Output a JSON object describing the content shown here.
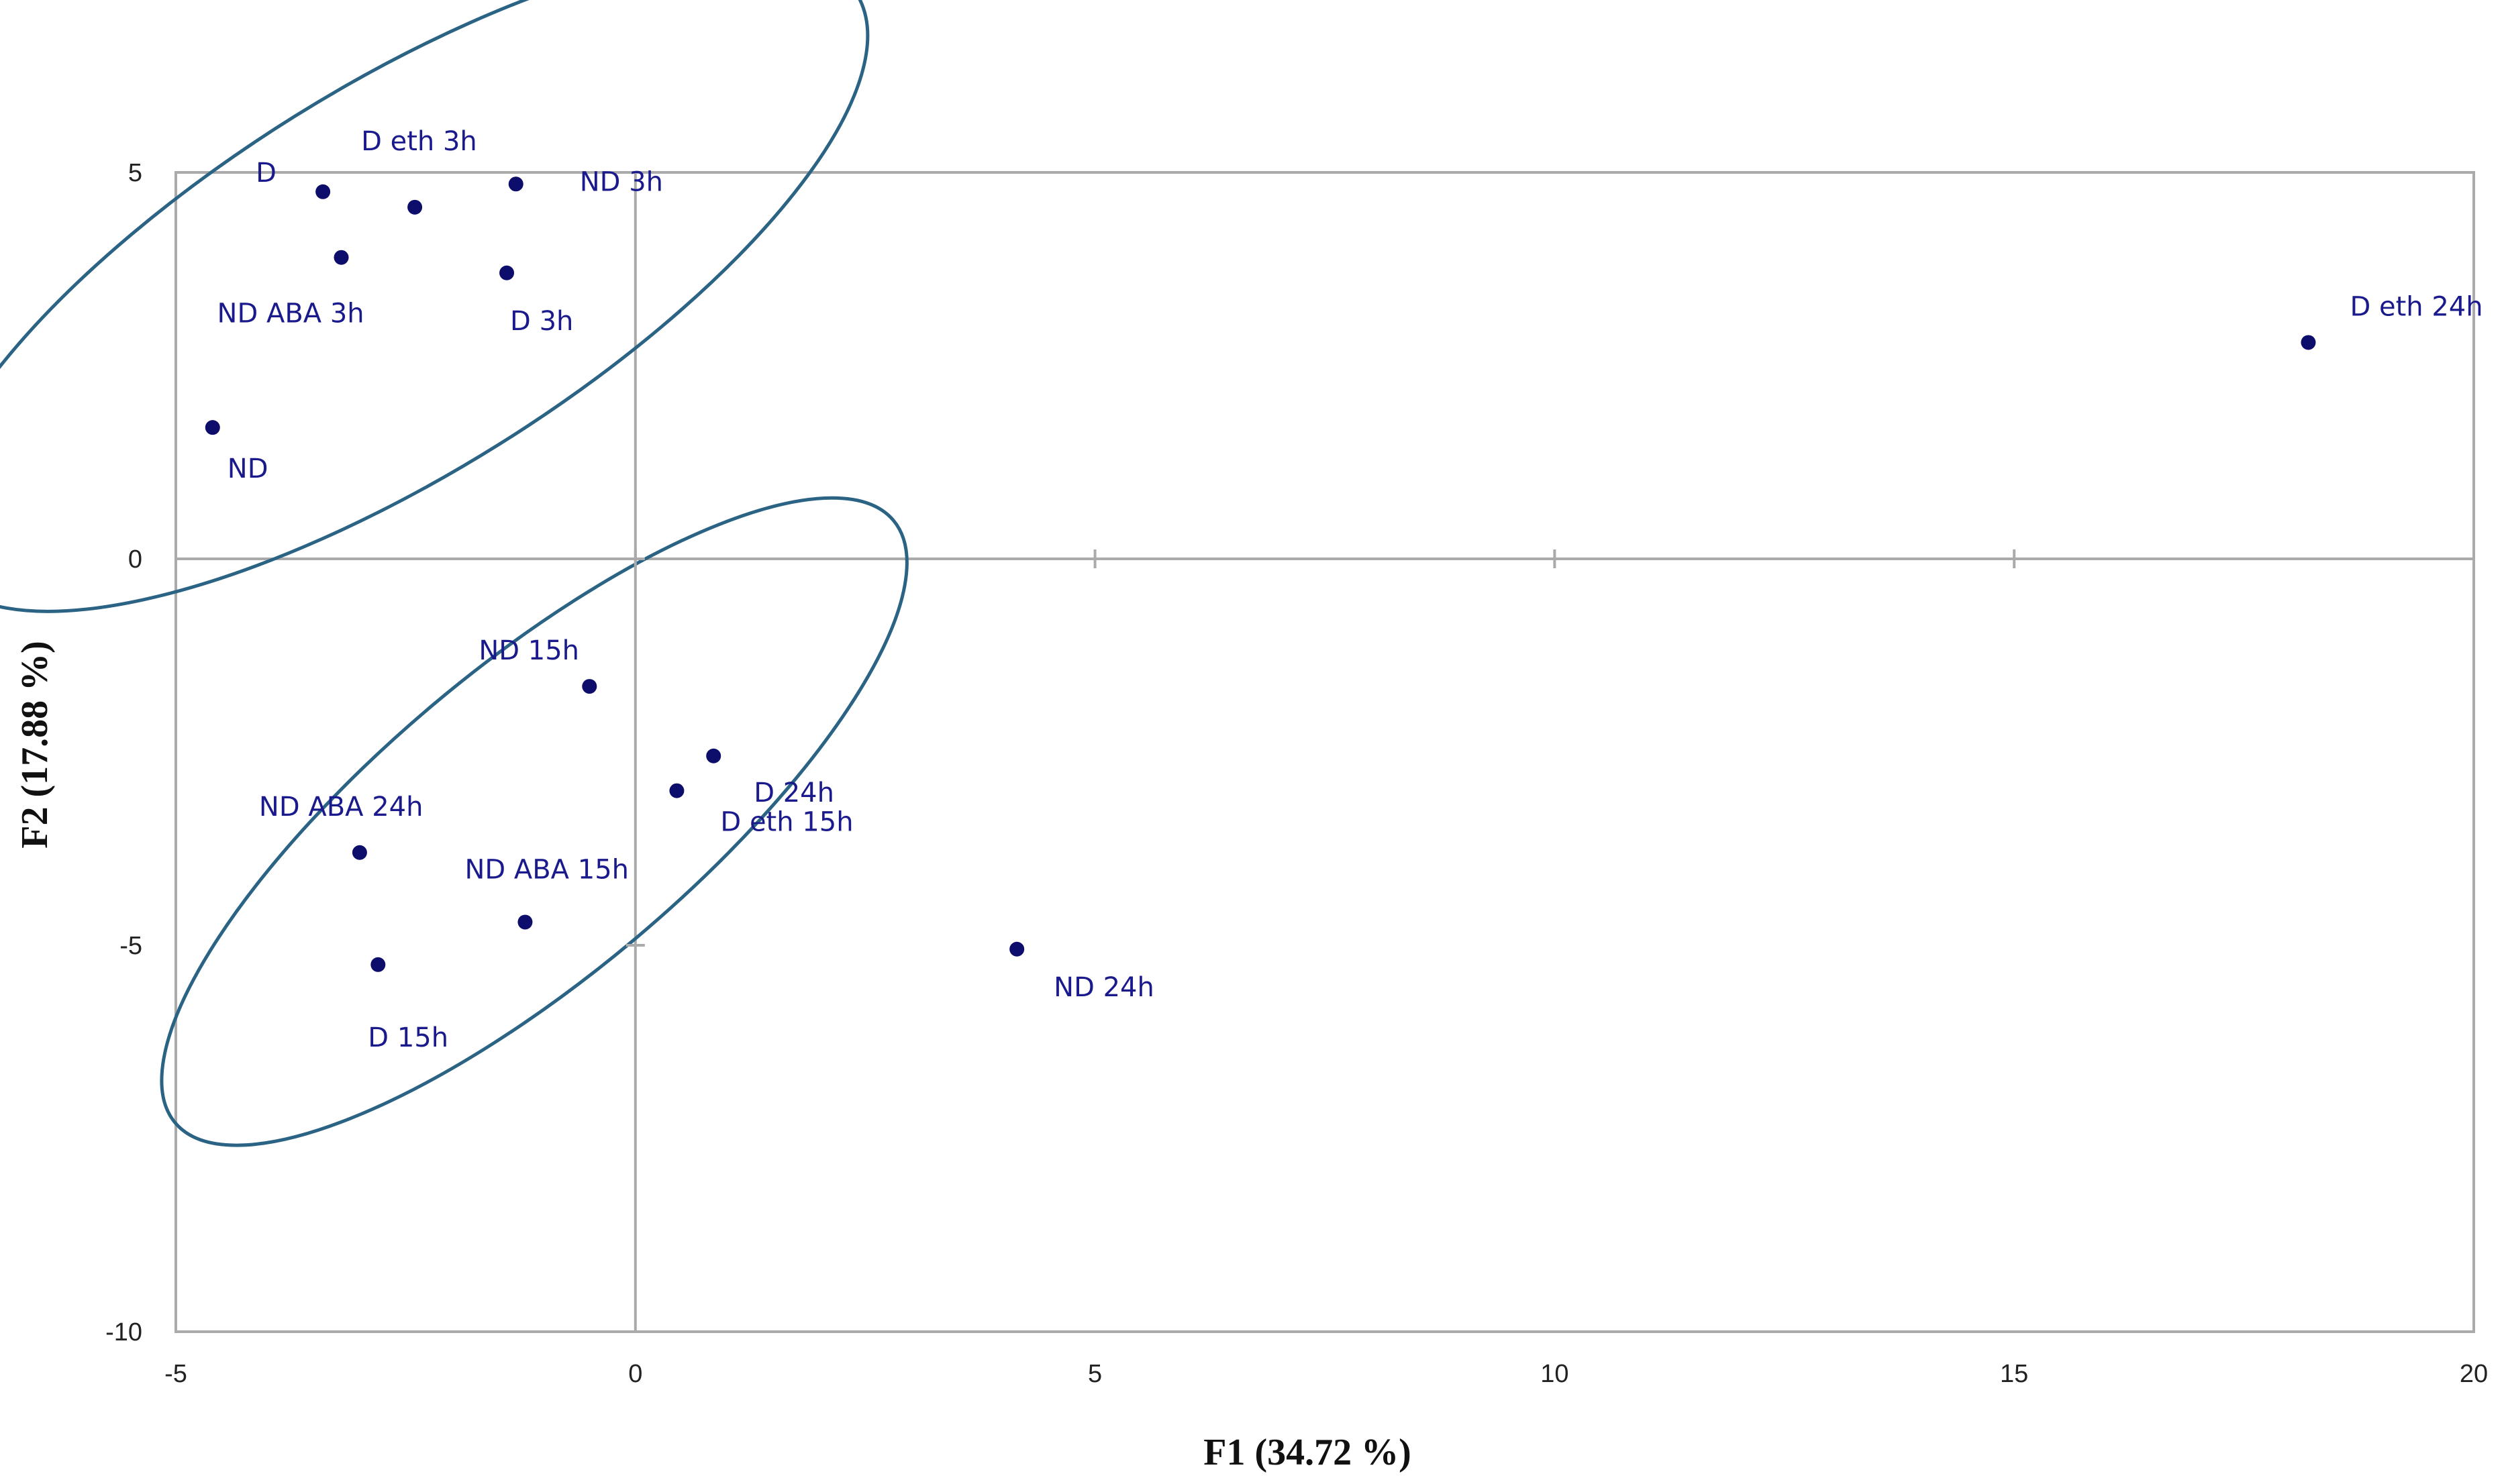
{
  "chart_data": {
    "type": "scatter",
    "xlabel": "F1 (34.72 %)",
    "ylabel": "F2 (17.88 %)",
    "xlim": [
      -5,
      20
    ],
    "ylim": [
      -10,
      5
    ],
    "x_ticks": [
      -5,
      0,
      5,
      10,
      15,
      20
    ],
    "y_ticks": [
      5,
      0,
      -5,
      -10
    ],
    "grid": false,
    "colors": {
      "points": "#0d0d6b",
      "labels": "#1a1a8c",
      "ellipse": "#2b6384",
      "axes": "#aaaaaa"
    },
    "points": [
      {
        "label": "D",
        "x": -3.4,
        "y": 4.75
      },
      {
        "label": "D eth 3h",
        "x": -2.4,
        "y": 4.55
      },
      {
        "label": "ND 3h",
        "x": -1.3,
        "y": 4.85
      },
      {
        "label": "ND ABA 3h",
        "x": -3.2,
        "y": 3.9
      },
      {
        "label": "D 3h",
        "x": -1.4,
        "y": 3.7
      },
      {
        "label": "ND",
        "x": -4.6,
        "y": 1.7
      },
      {
        "label": "D eth 24h",
        "x": 18.2,
        "y": 2.8
      },
      {
        "label": "ND 15h",
        "x": -0.5,
        "y": -1.65
      },
      {
        "label": "D 24h",
        "x": 0.85,
        "y": -2.55
      },
      {
        "label": "D eth 15h",
        "x": 0.45,
        "y": -3.0
      },
      {
        "label": "ND ABA 24h",
        "x": -3.0,
        "y": -3.8
      },
      {
        "label": "ND ABA 15h",
        "x": -1.2,
        "y": -4.7
      },
      {
        "label": "D 15h",
        "x": -2.8,
        "y": -5.25
      },
      {
        "label": "ND 24h",
        "x": 4.15,
        "y": -5.05
      }
    ],
    "clusters": [
      {
        "cx": -2.6,
        "cy": 3.6,
        "rx": 5.9,
        "ry": 2.5,
        "angle": -32
      },
      {
        "cx": -1.1,
        "cy": -3.4,
        "rx": 5.1,
        "ry": 2.0,
        "angle": -40
      }
    ]
  }
}
